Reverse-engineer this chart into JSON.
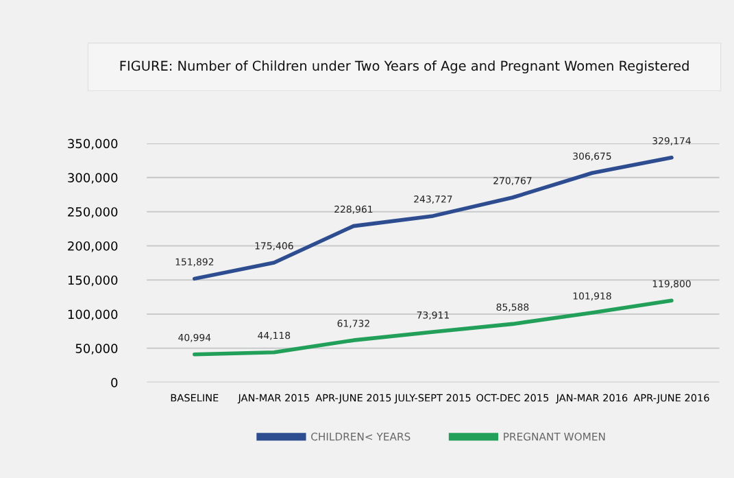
{
  "chart_data": {
    "type": "line",
    "title": "FIGURE: Number of Children under Two Years of Age and Pregnant Women Registered",
    "categories": [
      "BASELINE",
      "JAN-MAR 2015",
      "APR-JUNE 2015",
      "JULY-SEPT 2015",
      "OCT-DEC 2015",
      "JAN-MAR 2016",
      "APR-JUNE 2016"
    ],
    "series": [
      {
        "name": "CHILDREN< YEARS",
        "color": "#2e4d91",
        "values": [
          151892,
          175406,
          228961,
          243727,
          270767,
          306675,
          329174
        ],
        "value_labels": [
          "151,892",
          "175,406",
          "228,961",
          "243,727",
          "270,767",
          "306,675",
          "329,174"
        ]
      },
      {
        "name": "PREGNANT WOMEN",
        "color": "#22a05a",
        "values": [
          40994,
          44118,
          61732,
          73911,
          85588,
          101918,
          119800
        ],
        "value_labels": [
          "40,994",
          "44,118",
          "61,732",
          "73,911",
          "85,588",
          "101,918",
          "119,800"
        ]
      }
    ],
    "ylim": [
      0,
      350000
    ],
    "yticks": [
      {
        "value": 0,
        "label": "0"
      },
      {
        "value": 50000,
        "label": "50,000"
      },
      {
        "value": 100000,
        "label": "100,000"
      },
      {
        "value": 150000,
        "label": "150,000"
      },
      {
        "value": 200000,
        "label": "200,000"
      },
      {
        "value": 250000,
        "label": "250,000"
      },
      {
        "value": 300000,
        "label": "300,000"
      },
      {
        "value": 350000,
        "label": "350,000"
      }
    ],
    "grid": "y",
    "legend": "bottom",
    "marker": "none",
    "line_style": "solid"
  }
}
